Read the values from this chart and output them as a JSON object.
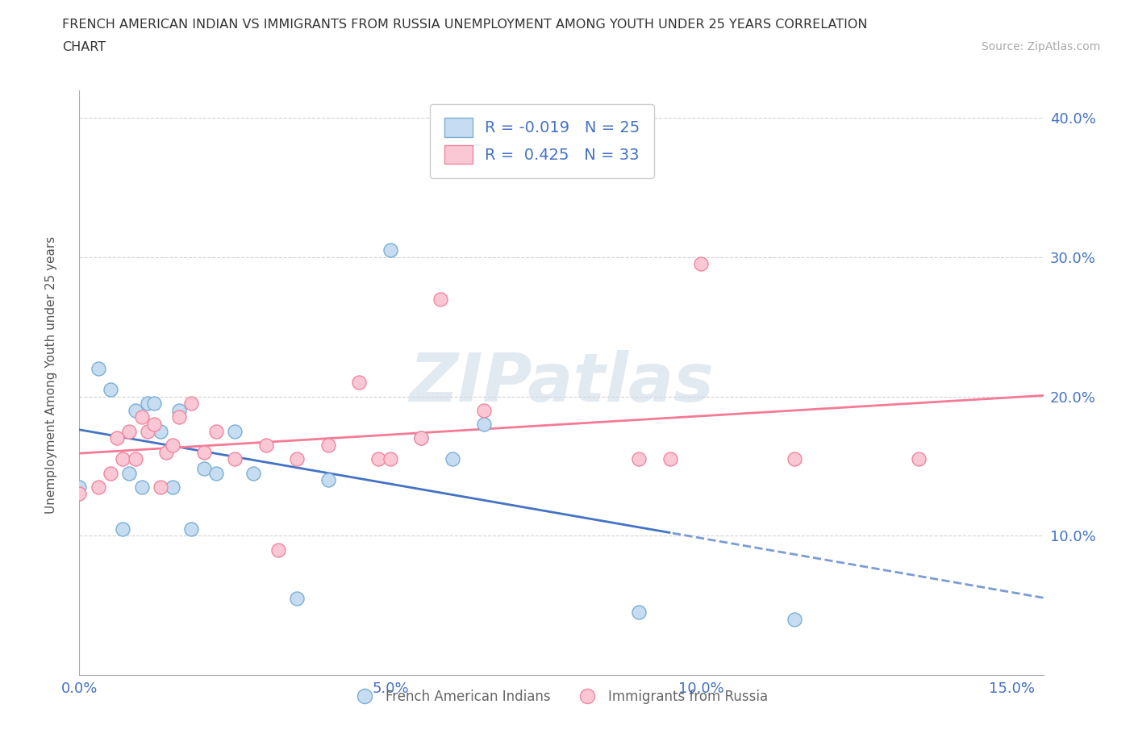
{
  "title_line1": "FRENCH AMERICAN INDIAN VS IMMIGRANTS FROM RUSSIA UNEMPLOYMENT AMONG YOUTH UNDER 25 YEARS CORRELATION",
  "title_line2": "CHART",
  "source_text": "Source: ZipAtlas.com",
  "ylabel": "Unemployment Among Youth under 25 years",
  "legend_label1": "French American Indians",
  "legend_label2": "Immigrants from Russia",
  "r1": -0.019,
  "n1": 25,
  "r2": 0.425,
  "n2": 33,
  "color_blue_fill": "#c6dcf0",
  "color_pink_fill": "#f9c8d4",
  "color_blue_edge": "#7bafd4",
  "color_pink_edge": "#f285a0",
  "color_blue_line": "#4472c4",
  "color_pink_line": "#f47a96",
  "color_text_blue": "#4472c4",
  "xlim_min": 0.0,
  "xlim_max": 0.155,
  "ylim_min": 0.0,
  "ylim_max": 0.42,
  "xtick_labels": [
    "0.0%",
    "5.0%",
    "10.0%",
    "15.0%"
  ],
  "ytick_labels": [
    "10.0%",
    "20.0%",
    "30.0%",
    "40.0%"
  ],
  "ytick_values": [
    0.1,
    0.2,
    0.3,
    0.4
  ],
  "xtick_values": [
    0.0,
    0.05,
    0.1,
    0.15
  ],
  "blue_x": [
    0.0,
    0.003,
    0.005,
    0.007,
    0.008,
    0.009,
    0.01,
    0.011,
    0.012,
    0.013,
    0.015,
    0.016,
    0.018,
    0.02,
    0.022,
    0.025,
    0.028,
    0.035,
    0.04,
    0.05,
    0.055,
    0.06,
    0.065,
    0.09,
    0.115
  ],
  "blue_y": [
    0.135,
    0.22,
    0.205,
    0.105,
    0.145,
    0.19,
    0.135,
    0.195,
    0.195,
    0.175,
    0.135,
    0.19,
    0.105,
    0.148,
    0.145,
    0.175,
    0.145,
    0.055,
    0.14,
    0.305,
    0.17,
    0.155,
    0.18,
    0.045,
    0.04
  ],
  "pink_x": [
    0.0,
    0.003,
    0.005,
    0.006,
    0.007,
    0.008,
    0.009,
    0.01,
    0.011,
    0.012,
    0.013,
    0.014,
    0.015,
    0.016,
    0.018,
    0.02,
    0.022,
    0.025,
    0.03,
    0.032,
    0.035,
    0.04,
    0.045,
    0.048,
    0.05,
    0.055,
    0.058,
    0.065,
    0.09,
    0.095,
    0.1,
    0.115,
    0.135
  ],
  "pink_y": [
    0.13,
    0.135,
    0.145,
    0.17,
    0.155,
    0.175,
    0.155,
    0.185,
    0.175,
    0.18,
    0.135,
    0.16,
    0.165,
    0.185,
    0.195,
    0.16,
    0.175,
    0.155,
    0.165,
    0.09,
    0.155,
    0.165,
    0.21,
    0.155,
    0.155,
    0.17,
    0.27,
    0.19,
    0.155,
    0.155,
    0.295,
    0.155,
    0.155
  ],
  "blue_line_x_solid_end": 0.095,
  "watermark_text": "ZIPatlas",
  "grid_color": "#d3d3d3",
  "background_color": "#ffffff"
}
